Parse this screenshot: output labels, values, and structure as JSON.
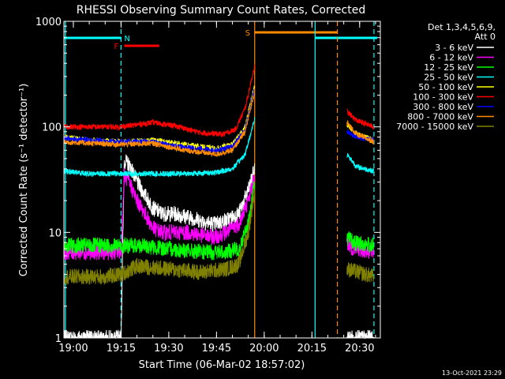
{
  "chart_data": {
    "type": "line",
    "title": "RHESSI Observing Summary Count Rates, Corrected",
    "ylabel": "Corrected Count Rate (s⁻¹ detector⁻¹)",
    "xlabel": "Start Time (06-Mar-02 18:57:02)",
    "y_scale": "log",
    "ylim": [
      1,
      1000
    ],
    "xlim": [
      "18:57:02",
      "20:36:30"
    ],
    "x_ticks": [
      "19:00",
      "19:15",
      "19:30",
      "19:45",
      "20:00",
      "20:15",
      "20:30"
    ],
    "y_ticks": [
      "1",
      "10",
      "100",
      "1000"
    ],
    "grid": false,
    "legend_position": "top-right",
    "legend_header": [
      "Det 1,3,4,5,6,9,",
      "Att 0"
    ],
    "footer_date": "13-Oct-2021 23:29",
    "flags": [
      {
        "label": "N",
        "color": "#00ffff",
        "start": "18:57:02",
        "end": "19:15:00"
      },
      {
        "label": "F",
        "color": "#ff0000",
        "start": "19:16:00",
        "end": "19:27:00"
      },
      {
        "label": "S",
        "color": "#ff8c00",
        "start": "19:57:00",
        "end": "20:23:00"
      },
      {
        "label": "",
        "color": "#00ffff",
        "start": "20:16:00",
        "end": "20:35:30"
      }
    ],
    "vlines": [
      {
        "time": "18:57:30",
        "color": "#00ffff",
        "style": "solid"
      },
      {
        "time": "19:15:00",
        "color": "#00ffff",
        "style": "dashed"
      },
      {
        "time": "19:57:00",
        "color": "#ff8c00",
        "style": "solid"
      },
      {
        "time": "20:16:00",
        "color": "#00ffff",
        "style": "solid"
      },
      {
        "time": "20:23:00",
        "color": "#ff8c00",
        "style": "dashed"
      },
      {
        "time": "20:34:30",
        "color": "#00ffff",
        "style": "dashed"
      }
    ],
    "gap": [
      "19:57:00",
      "20:26:00"
    ],
    "series": [
      {
        "name": "3 - 6 keV",
        "color": "#ffffff",
        "points": [
          [
            "18:57:02",
            1
          ],
          [
            "19:15:00",
            1
          ],
          [
            "19:16:00",
            48
          ],
          [
            "19:18:00",
            42
          ],
          [
            "19:20:00",
            30
          ],
          [
            "19:22:00",
            24
          ],
          [
            "19:25:00",
            17
          ],
          [
            "19:28:00",
            15
          ],
          [
            "19:32:00",
            15
          ],
          [
            "19:36:00",
            14
          ],
          [
            "19:40:00",
            13
          ],
          [
            "19:44:00",
            12
          ],
          [
            "19:48:00",
            13
          ],
          [
            "19:52:00",
            15
          ],
          [
            "19:55:00",
            25
          ],
          [
            "19:57:00",
            40
          ]
        ],
        "points2": [
          [
            "20:26:00",
            1
          ],
          [
            "20:34:30",
            1
          ]
        ]
      },
      {
        "name": "6 - 12 keV",
        "color": "#ff00ff",
        "points": [
          [
            "18:57:02",
            6.5
          ],
          [
            "19:15:00",
            6.5
          ],
          [
            "19:16:00",
            35
          ],
          [
            "19:18:00",
            28
          ],
          [
            "19:20:00",
            20
          ],
          [
            "19:22:00",
            16
          ],
          [
            "19:25:00",
            11
          ],
          [
            "19:28:00",
            10
          ],
          [
            "19:32:00",
            10
          ],
          [
            "19:36:00",
            10
          ],
          [
            "19:40:00",
            9.5
          ],
          [
            "19:44:00",
            9
          ],
          [
            "19:48:00",
            10
          ],
          [
            "19:52:00",
            12
          ],
          [
            "19:55:00",
            20
          ],
          [
            "19:57:00",
            35
          ]
        ],
        "points2": [
          [
            "20:26:00",
            8
          ],
          [
            "20:28:00",
            7
          ],
          [
            "20:34:30",
            6.5
          ]
        ]
      },
      {
        "name": "12 - 25 keV",
        "color": "#00ff00",
        "points": [
          [
            "18:57:02",
            7.5
          ],
          [
            "19:15:00",
            7.5
          ],
          [
            "19:20:00",
            7.5
          ],
          [
            "19:30:00",
            7
          ],
          [
            "19:40:00",
            6.5
          ],
          [
            "19:48:00",
            6.5
          ],
          [
            "19:52:00",
            7
          ],
          [
            "19:55:00",
            12
          ],
          [
            "19:57:00",
            30
          ]
        ],
        "points2": [
          [
            "20:26:00",
            9
          ],
          [
            "20:28:00",
            8
          ],
          [
            "20:34:30",
            7.5
          ]
        ]
      },
      {
        "name": "25 - 50 keV",
        "color": "#00ffff",
        "points": [
          [
            "18:57:02",
            38
          ],
          [
            "19:05:00",
            36
          ],
          [
            "19:15:00",
            36
          ],
          [
            "19:25:00",
            36
          ],
          [
            "19:35:00",
            36
          ],
          [
            "19:45:00",
            37
          ],
          [
            "19:50:00",
            40
          ],
          [
            "19:54:00",
            55
          ],
          [
            "19:57:00",
            120
          ]
        ],
        "points2": [
          [
            "20:26:00",
            55
          ],
          [
            "20:29:00",
            42
          ],
          [
            "20:34:30",
            38
          ]
        ]
      },
      {
        "name": "50 - 100 keV",
        "color": "#ffff00",
        "points": [
          [
            "18:57:02",
            80
          ],
          [
            "19:05:00",
            75
          ],
          [
            "19:15:00",
            72
          ],
          [
            "19:25:00",
            75
          ],
          [
            "19:35:00",
            68
          ],
          [
            "19:45:00",
            62
          ],
          [
            "19:50:00",
            68
          ],
          [
            "19:54:00",
            100
          ],
          [
            "19:57:00",
            250
          ]
        ],
        "points2": [
          [
            "20:26:00",
            105
          ],
          [
            "20:29:00",
            85
          ],
          [
            "20:34:30",
            75
          ]
        ]
      },
      {
        "name": "100 - 300 keV",
        "color": "#ff0000",
        "points": [
          [
            "18:57:02",
            100
          ],
          [
            "19:05:00",
            100
          ],
          [
            "19:15:00",
            100
          ],
          [
            "19:25:00",
            110
          ],
          [
            "19:32:00",
            102
          ],
          [
            "19:40:00",
            88
          ],
          [
            "19:47:00",
            85
          ],
          [
            "19:51:00",
            95
          ],
          [
            "19:54:00",
            150
          ],
          [
            "19:57:00",
            380
          ]
        ],
        "points2": [
          [
            "20:26:00",
            140
          ],
          [
            "20:29:00",
            115
          ],
          [
            "20:34:30",
            100
          ]
        ]
      },
      {
        "name": "300 - 800 keV",
        "color": "#0000ff",
        "points": [
          [
            "18:57:02",
            78
          ],
          [
            "19:05:00",
            75
          ],
          [
            "19:15:00",
            72
          ],
          [
            "19:25:00",
            72
          ],
          [
            "19:35:00",
            64
          ],
          [
            "19:45:00",
            60
          ],
          [
            "19:50:00",
            65
          ],
          [
            "19:54:00",
            95
          ],
          [
            "19:57:00",
            230
          ]
        ],
        "points2": [
          [
            "20:26:00",
            90
          ],
          [
            "20:29:00",
            80
          ],
          [
            "20:34:30",
            75
          ]
        ]
      },
      {
        "name": "800 - 7000 keV",
        "color": "#ff8c00",
        "points": [
          [
            "18:57:02",
            72
          ],
          [
            "19:05:00",
            70
          ],
          [
            "19:15:00",
            68
          ],
          [
            "19:25:00",
            70
          ],
          [
            "19:35:00",
            60
          ],
          [
            "19:45:00",
            55
          ],
          [
            "19:50:00",
            60
          ],
          [
            "19:54:00",
            90
          ],
          [
            "19:57:00",
            220
          ]
        ],
        "points2": [
          [
            "20:26:00",
            110
          ],
          [
            "20:29:00",
            85
          ],
          [
            "20:34:30",
            72
          ]
        ]
      },
      {
        "name": "7000 - 15000 keV",
        "color": "#808000",
        "points": [
          [
            "18:57:02",
            3.8
          ],
          [
            "19:10:00",
            3.8
          ],
          [
            "19:15:00",
            4
          ],
          [
            "19:20:00",
            4.8
          ],
          [
            "19:30:00",
            4.5
          ],
          [
            "19:40:00",
            4.2
          ],
          [
            "19:48:00",
            4.5
          ],
          [
            "19:52:00",
            5
          ],
          [
            "19:55:00",
            10
          ],
          [
            "19:57:00",
            25
          ]
        ],
        "points2": [
          [
            "20:26:00",
            4.5
          ],
          [
            "20:34:30",
            3.8
          ]
        ]
      }
    ]
  }
}
